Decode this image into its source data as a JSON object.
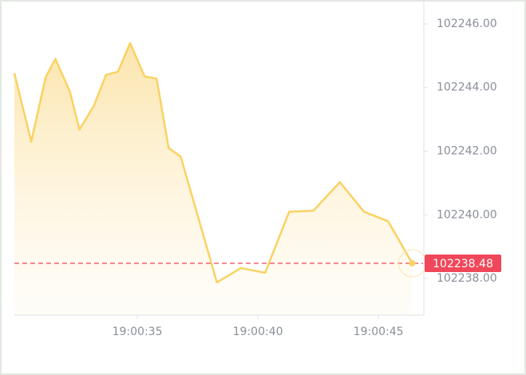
{
  "chart_data": {
    "type": "area",
    "x": [
      29.9,
      30.6,
      31.2,
      31.6,
      32.2,
      32.6,
      33.2,
      33.7,
      34.2,
      34.7,
      35.3,
      35.8,
      36.3,
      36.8,
      38.3,
      39.3,
      40.3,
      41.3,
      42.3,
      43.4,
      44.4,
      45.4,
      46.4
    ],
    "series": [
      {
        "color": "#f9d262",
        "values": [
          102244.45,
          102242.3,
          102244.33,
          102244.9,
          102243.88,
          102242.68,
          102243.43,
          102244.4,
          102244.5,
          102245.4,
          102244.35,
          102244.28,
          102242.1,
          102241.83,
          102237.88,
          102238.33,
          102238.18,
          102240.1,
          102240.13,
          102241.03,
          102240.1,
          102239.8,
          102238.48
        ]
      }
    ],
    "xlim": [
      29.9,
      46.85
    ],
    "xticks": [
      {
        "value": 35,
        "label": "19:00:35"
      },
      {
        "value": 40,
        "label": "19:00:40"
      },
      {
        "value": 45,
        "label": "19:00:45"
      }
    ],
    "ylim": [
      102236.85,
      102246.55
    ],
    "yticks": [
      {
        "value": 102238,
        "label": "102238.00"
      },
      {
        "value": 102240,
        "label": "102240.00"
      },
      {
        "value": 102242,
        "label": "102242.00"
      },
      {
        "value": 102244,
        "label": "102244.00"
      },
      {
        "value": 102246,
        "label": "102246.00"
      }
    ],
    "last_price": 102238.48,
    "last_price_color": "#f0475a"
  }
}
